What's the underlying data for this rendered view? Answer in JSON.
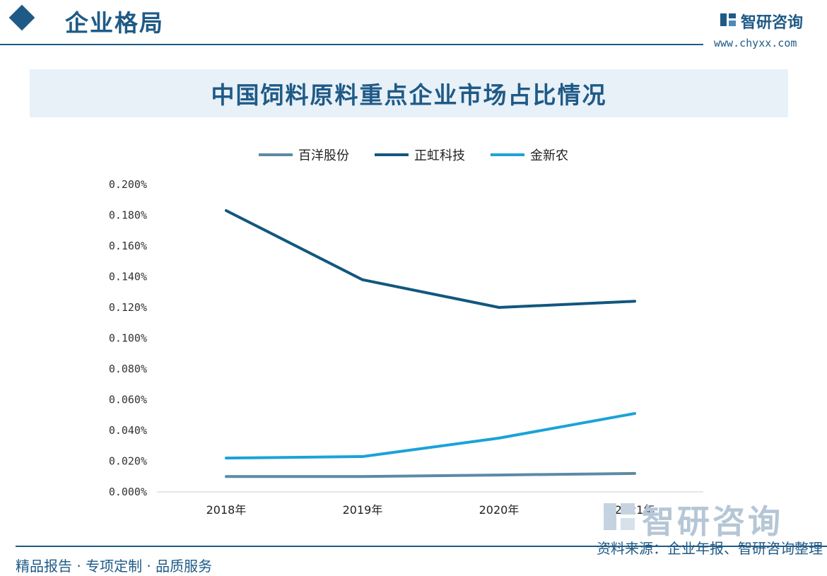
{
  "header": {
    "section_title": "企业格局",
    "brand_name": "智研咨询",
    "brand_url": "www.chyxx.com"
  },
  "chart_data": {
    "type": "line",
    "title": "中国饲料原料重点企业市场占比情况",
    "categories": [
      "2018年",
      "2019年",
      "2020年",
      "2021年"
    ],
    "series": [
      {
        "name": "百洋股份",
        "values": [
          0.01,
          0.01,
          0.011,
          0.012
        ],
        "color": "#5b8aa6"
      },
      {
        "name": "正虹科技",
        "values": [
          0.183,
          0.138,
          0.12,
          0.124
        ],
        "color": "#12577e"
      },
      {
        "name": "金新农",
        "values": [
          0.022,
          0.023,
          0.035,
          0.051
        ],
        "color": "#1aa3d8"
      }
    ],
    "ylim": [
      0,
      0.2
    ],
    "yticks": [
      "0.000%",
      "0.020%",
      "0.040%",
      "0.060%",
      "0.080%",
      "0.100%",
      "0.120%",
      "0.140%",
      "0.160%",
      "0.180%",
      "0.200%"
    ],
    "grid": false,
    "legend_position": "top-center"
  },
  "watermark": {
    "text": "智研咨询"
  },
  "footer": {
    "left_text": "精品报告 · 专项定制 · 品质服务",
    "source_text": "资料来源：企业年报、智研咨询整理"
  },
  "colors": {
    "accent": "#1f5a86",
    "band": "#e8f0f8"
  }
}
